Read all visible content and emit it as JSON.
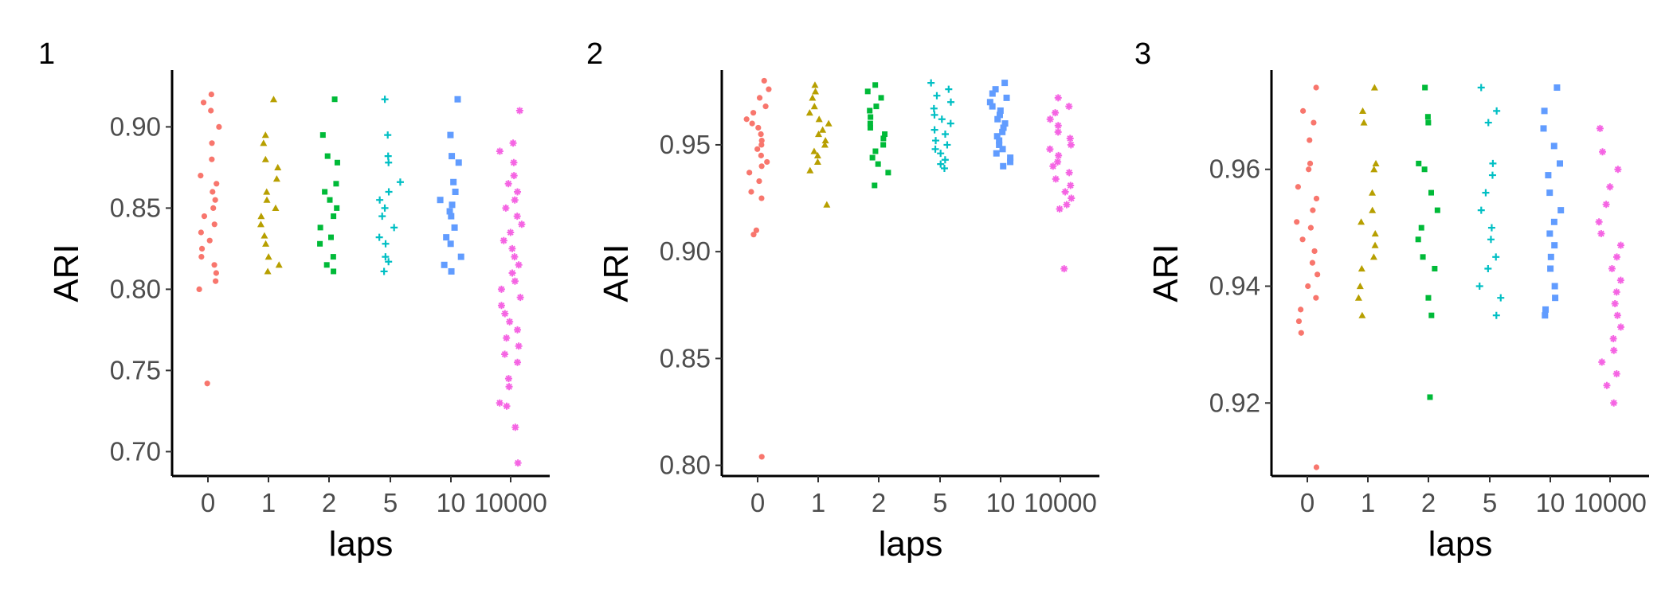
{
  "chart_data": [
    {
      "type": "scatter",
      "tag": "1",
      "xlabel": "laps",
      "ylabel": "ARI",
      "categories": [
        "0",
        "1",
        "2",
        "5",
        "10",
        "10000"
      ],
      "yticks": [
        "0.70",
        "0.75",
        "0.80",
        "0.85",
        "0.90"
      ],
      "ylim": [
        0.685,
        0.935
      ],
      "series": [
        {
          "category": "0",
          "color": "#F8766D",
          "shape": "circle",
          "values": [
            0.92,
            0.915,
            0.91,
            0.9,
            0.89,
            0.88,
            0.87,
            0.865,
            0.86,
            0.855,
            0.85,
            0.845,
            0.84,
            0.835,
            0.83,
            0.825,
            0.82,
            0.815,
            0.81,
            0.805,
            0.8,
            0.742
          ]
        },
        {
          "category": "1",
          "color": "#B79F00",
          "shape": "triangle",
          "values": [
            0.917,
            0.895,
            0.89,
            0.88,
            0.875,
            0.868,
            0.86,
            0.855,
            0.85,
            0.845,
            0.84,
            0.833,
            0.828,
            0.82,
            0.815,
            0.811
          ]
        },
        {
          "category": "2",
          "color": "#00BA38",
          "shape": "square",
          "values": [
            0.917,
            0.895,
            0.882,
            0.878,
            0.865,
            0.86,
            0.855,
            0.85,
            0.845,
            0.838,
            0.832,
            0.828,
            0.82,
            0.815,
            0.811
          ]
        },
        {
          "category": "5",
          "color": "#00BFC4",
          "shape": "plus",
          "values": [
            0.917,
            0.895,
            0.882,
            0.878,
            0.866,
            0.86,
            0.855,
            0.85,
            0.845,
            0.838,
            0.832,
            0.828,
            0.82,
            0.817,
            0.811
          ]
        },
        {
          "category": "10",
          "color": "#619CFF",
          "shape": "squarefill",
          "values": [
            0.917,
            0.895,
            0.882,
            0.878,
            0.866,
            0.86,
            0.855,
            0.852,
            0.848,
            0.845,
            0.838,
            0.832,
            0.828,
            0.82,
            0.815,
            0.811
          ]
        },
        {
          "category": "10000",
          "color": "#F564E3",
          "shape": "asterisk",
          "values": [
            0.91,
            0.89,
            0.885,
            0.878,
            0.87,
            0.865,
            0.86,
            0.855,
            0.85,
            0.845,
            0.84,
            0.835,
            0.83,
            0.825,
            0.82,
            0.815,
            0.81,
            0.805,
            0.8,
            0.795,
            0.79,
            0.785,
            0.78,
            0.775,
            0.77,
            0.765,
            0.76,
            0.755,
            0.745,
            0.74,
            0.73,
            0.728,
            0.715,
            0.693
          ]
        }
      ]
    },
    {
      "type": "scatter",
      "tag": "2",
      "xlabel": "laps",
      "ylabel": "ARI",
      "categories": [
        "0",
        "1",
        "2",
        "5",
        "10",
        "10000"
      ],
      "yticks": [
        "0.80",
        "0.85",
        "0.90",
        "0.95"
      ],
      "ylim": [
        0.795,
        0.985
      ],
      "series": [
        {
          "category": "0",
          "color": "#F8766D",
          "shape": "circle",
          "values": [
            0.98,
            0.976,
            0.972,
            0.968,
            0.965,
            0.962,
            0.96,
            0.958,
            0.955,
            0.952,
            0.95,
            0.948,
            0.945,
            0.942,
            0.94,
            0.937,
            0.933,
            0.928,
            0.925,
            0.91,
            0.908,
            0.804
          ]
        },
        {
          "category": "1",
          "color": "#B79F00",
          "shape": "triangle",
          "values": [
            0.978,
            0.975,
            0.972,
            0.968,
            0.965,
            0.962,
            0.96,
            0.957,
            0.955,
            0.952,
            0.95,
            0.947,
            0.945,
            0.942,
            0.938,
            0.922
          ]
        },
        {
          "category": "2",
          "color": "#00BA38",
          "shape": "square",
          "values": [
            0.978,
            0.975,
            0.972,
            0.968,
            0.966,
            0.963,
            0.96,
            0.958,
            0.955,
            0.953,
            0.95,
            0.947,
            0.944,
            0.941,
            0.937,
            0.931
          ]
        },
        {
          "category": "5",
          "color": "#00BFC4",
          "shape": "plus",
          "values": [
            0.979,
            0.976,
            0.973,
            0.97,
            0.967,
            0.964,
            0.962,
            0.96,
            0.957,
            0.955,
            0.952,
            0.95,
            0.948,
            0.946,
            0.943,
            0.941,
            0.939
          ]
        },
        {
          "category": "10",
          "color": "#619CFF",
          "shape": "squarefill",
          "values": [
            0.979,
            0.976,
            0.974,
            0.972,
            0.97,
            0.968,
            0.966,
            0.964,
            0.962,
            0.96,
            0.958,
            0.956,
            0.954,
            0.952,
            0.95,
            0.948,
            0.946,
            0.944,
            0.942,
            0.94
          ]
        },
        {
          "category": "10000",
          "color": "#F564E3",
          "shape": "asterisk",
          "values": [
            0.972,
            0.968,
            0.965,
            0.962,
            0.959,
            0.956,
            0.953,
            0.95,
            0.948,
            0.945,
            0.942,
            0.94,
            0.937,
            0.934,
            0.931,
            0.928,
            0.925,
            0.922,
            0.92,
            0.892
          ]
        }
      ]
    },
    {
      "type": "scatter",
      "tag": "3",
      "xlabel": "laps",
      "ylabel": "ARI",
      "categories": [
        "0",
        "1",
        "2",
        "5",
        "10",
        "10000"
      ],
      "yticks": [
        "0.92",
        "0.94",
        "0.96"
      ],
      "ylim": [
        0.9075,
        0.977
      ],
      "series": [
        {
          "category": "0",
          "color": "#F8766D",
          "shape": "circle",
          "values": [
            0.974,
            0.97,
            0.968,
            0.965,
            0.961,
            0.96,
            0.957,
            0.955,
            0.953,
            0.951,
            0.95,
            0.948,
            0.946,
            0.944,
            0.942,
            0.94,
            0.938,
            0.936,
            0.934,
            0.932,
            0.909
          ]
        },
        {
          "category": "1",
          "color": "#B79F00",
          "shape": "triangle",
          "values": [
            0.974,
            0.97,
            0.968,
            0.961,
            0.96,
            0.956,
            0.953,
            0.951,
            0.949,
            0.947,
            0.945,
            0.943,
            0.94,
            0.938,
            0.935
          ]
        },
        {
          "category": "2",
          "color": "#00BA38",
          "shape": "square",
          "values": [
            0.974,
            0.969,
            0.968,
            0.961,
            0.96,
            0.956,
            0.953,
            0.95,
            0.948,
            0.945,
            0.943,
            0.938,
            0.935,
            0.921
          ]
        },
        {
          "category": "5",
          "color": "#00BFC4",
          "shape": "plus",
          "values": [
            0.974,
            0.97,
            0.968,
            0.961,
            0.959,
            0.956,
            0.953,
            0.95,
            0.948,
            0.945,
            0.943,
            0.94,
            0.938,
            0.935
          ]
        },
        {
          "category": "10",
          "color": "#619CFF",
          "shape": "squarefill",
          "values": [
            0.974,
            0.97,
            0.967,
            0.964,
            0.961,
            0.959,
            0.956,
            0.953,
            0.951,
            0.949,
            0.947,
            0.945,
            0.943,
            0.94,
            0.938,
            0.936,
            0.935
          ]
        },
        {
          "category": "10000",
          "color": "#F564E3",
          "shape": "asterisk",
          "values": [
            0.967,
            0.963,
            0.96,
            0.957,
            0.954,
            0.951,
            0.949,
            0.947,
            0.945,
            0.943,
            0.941,
            0.939,
            0.937,
            0.935,
            0.933,
            0.931,
            0.929,
            0.927,
            0.925,
            0.923,
            0.92
          ]
        }
      ]
    }
  ]
}
